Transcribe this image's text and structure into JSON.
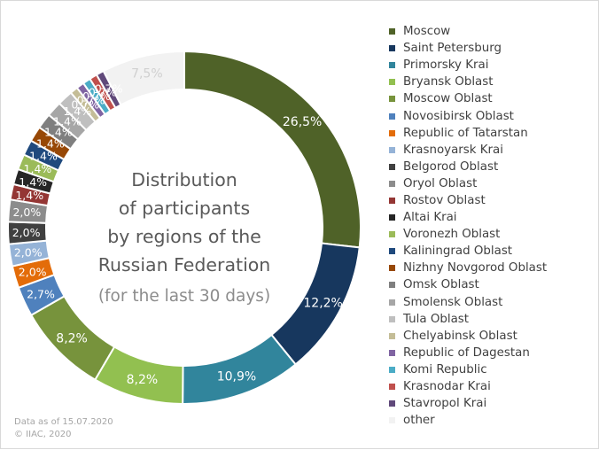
{
  "chart_data": {
    "type": "donut",
    "center_text": [
      "Distribution",
      "of participants",
      "by regions of the",
      "Russian Federation",
      "(for the last 30 days)"
    ],
    "legend_position": "right",
    "series": [
      {
        "name": "Moscow",
        "value": 26.5,
        "label": "26,5%",
        "color": "#4f6228"
      },
      {
        "name": "Saint Petersburg",
        "value": 12.2,
        "label": "12,2%",
        "color": "#17375e"
      },
      {
        "name": "Primorsky Krai",
        "value": 10.9,
        "label": "10,9%",
        "color": "#31859c"
      },
      {
        "name": "Bryansk Oblast",
        "value": 8.2,
        "label": "8,2%",
        "color": "#92c050"
      },
      {
        "name": "Moscow Oblast",
        "value": 8.2,
        "label": "8,2%",
        "color": "#77933c"
      },
      {
        "name": "Novosibirsk Oblast",
        "value": 2.7,
        "label": "2,7%",
        "color": "#4f81bd"
      },
      {
        "name": "Republic of Tatarstan",
        "value": 2.0,
        "label": "2,0%",
        "color": "#e36c09"
      },
      {
        "name": "Krasnoyarsk Krai",
        "value": 2.0,
        "label": "2,0%",
        "color": "#95b3d7"
      },
      {
        "name": "Belgorod Oblast",
        "value": 2.0,
        "label": "2,0%",
        "color": "#404040"
      },
      {
        "name": "Oryol Oblast",
        "value": 2.0,
        "label": "2,0%",
        "color": "#8c8c8c"
      },
      {
        "name": "Rostov Oblast",
        "value": 1.4,
        "label": "1,4%",
        "color": "#943634"
      },
      {
        "name": "Altai Krai",
        "value": 1.4,
        "label": "1,4%",
        "color": "#262626"
      },
      {
        "name": "Voronezh Oblast",
        "value": 1.4,
        "label": "1,4%",
        "color": "#9bbb59"
      },
      {
        "name": "Kaliningrad Oblast",
        "value": 1.4,
        "label": "1,4%",
        "color": "#1f497d"
      },
      {
        "name": "Nizhny Novgorod Oblast",
        "value": 1.4,
        "label": "1,4%",
        "color": "#974806"
      },
      {
        "name": "Omsk Oblast",
        "value": 1.4,
        "label": "1,4%",
        "color": "#7f7f7f"
      },
      {
        "name": "Smolensk Oblast",
        "value": 1.4,
        "label": "1,4%",
        "color": "#a6a6a6"
      },
      {
        "name": "Tula Oblast",
        "value": 1.4,
        "label": "1,4%",
        "color": "#bfbfbf"
      },
      {
        "name": "Chelyabinsk Oblast",
        "value": 0.7,
        "label": "0,7%",
        "color": "#c4bd97"
      },
      {
        "name": "Republic of Dagestan",
        "value": 0.7,
        "label": "0,7%",
        "color": "#8064a2"
      },
      {
        "name": "Komi Republic",
        "value": 0.7,
        "label": "0,7%",
        "color": "#4bacc6"
      },
      {
        "name": "Krasnodar Krai",
        "value": 0.7,
        "label": "0,7%",
        "color": "#c0504d"
      },
      {
        "name": "Stavropol Krai",
        "value": 0.7,
        "label": "0,7%",
        "color": "#60497a"
      },
      {
        "name": "other",
        "value": 7.5,
        "label": "7,5%",
        "color": "#f2f2f2"
      }
    ]
  },
  "footnote": {
    "line1": "Data as of 15.07.2020",
    "line2": "© IIAC, 2020"
  }
}
